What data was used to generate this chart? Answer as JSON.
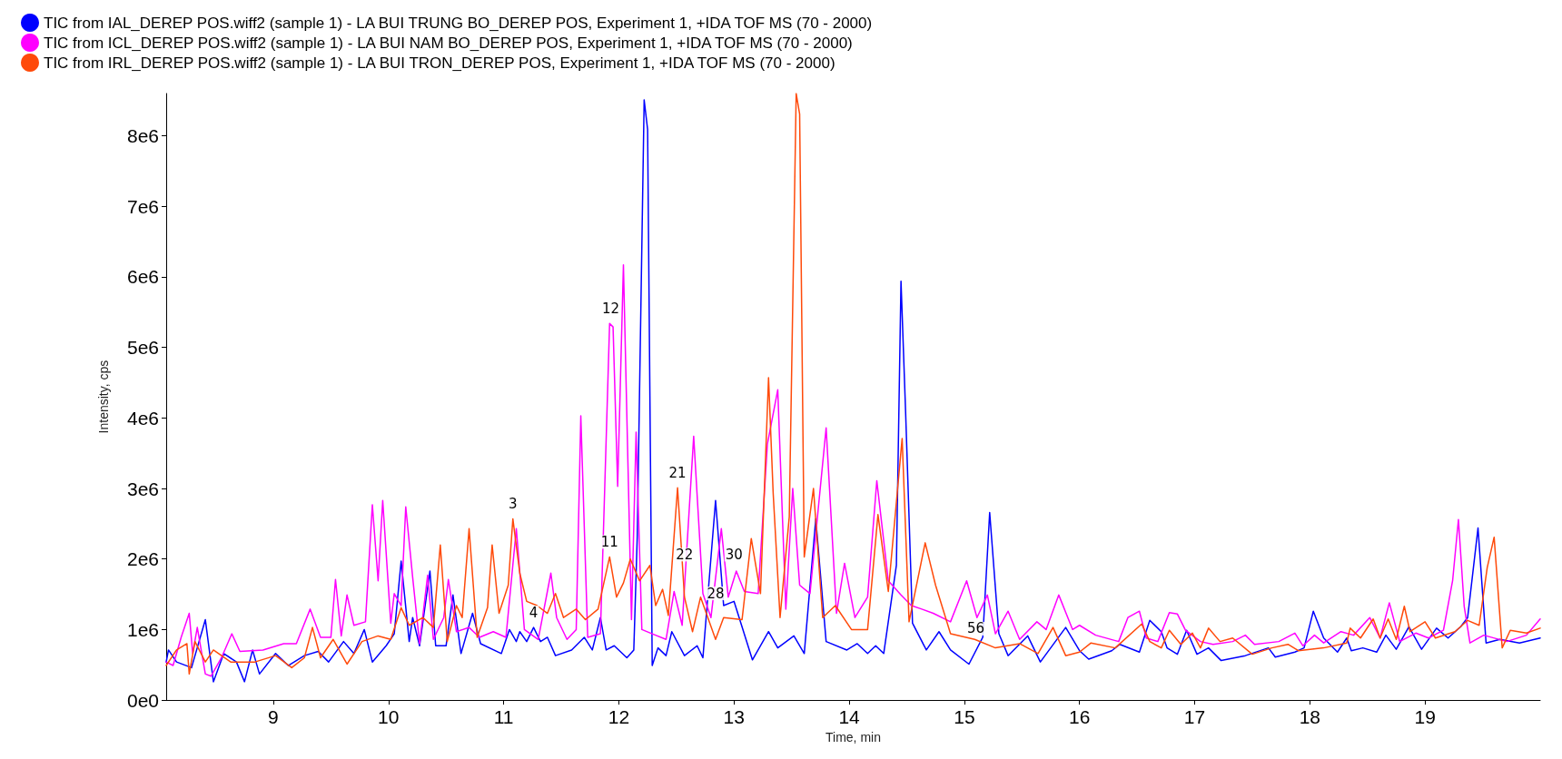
{
  "chart_data": {
    "type": "line",
    "xlabel": "Time, min",
    "ylabel": "Intensity, cps",
    "xlim": [
      8.07,
      20.0
    ],
    "xticks": [
      9,
      10,
      11,
      12,
      13,
      14,
      15,
      16,
      17,
      18,
      19
    ],
    "ylim": [
      0,
      8600000
    ],
    "yticks": [
      {
        "value": 0,
        "label": "0e0"
      },
      {
        "value": 1000000,
        "label": "1e6"
      },
      {
        "value": 2000000,
        "label": "2e6"
      },
      {
        "value": 3000000,
        "label": "3e6"
      },
      {
        "value": 4000000,
        "label": "4e6"
      },
      {
        "value": 5000000,
        "label": "5e6"
      },
      {
        "value": 6000000,
        "label": "6e6"
      },
      {
        "value": 7000000,
        "label": "7e6"
      },
      {
        "value": 8000000,
        "label": "8e6"
      }
    ],
    "grid": false,
    "legend": "top left",
    "marker": "none",
    "line_style": "solid",
    "annotations": [
      {
        "text": "3",
        "x": 11.08,
        "y": 2570000
      },
      {
        "text": "4",
        "x": 11.26,
        "y": 1030000
      },
      {
        "text": "11",
        "x": 11.92,
        "y": 2030000
      },
      {
        "text": "12",
        "x": 11.93,
        "y": 5340000
      },
      {
        "text": "21",
        "x": 12.51,
        "y": 3010000
      },
      {
        "text": "22",
        "x": 12.57,
        "y": 1850000
      },
      {
        "text": "28",
        "x": 12.84,
        "y": 1300000
      },
      {
        "text": "30",
        "x": 13.0,
        "y": 1850000
      },
      {
        "text": "56",
        "x": 15.1,
        "y": 800000
      }
    ],
    "series": [
      {
        "name": "TIC from IAL_DEREP POS.wiff2 (sample 1) - LA BUI TRUNG BO_DEREP POS, Experiment 1, +IDA TOF MS (70 - 2000)",
        "color": "#0000ff",
        "x": [
          8.07,
          8.09,
          8.16,
          8.29,
          8.41,
          8.48,
          8.57,
          8.68,
          8.75,
          8.82,
          8.88,
          9.02,
          9.13,
          9.27,
          9.39,
          9.48,
          9.61,
          9.7,
          9.79,
          9.86,
          9.98,
          10.05,
          10.11,
          10.18,
          10.21,
          10.27,
          10.36,
          10.41,
          10.5,
          10.56,
          10.63,
          10.73,
          10.8,
          10.98,
          11.05,
          11.11,
          11.14,
          11.2,
          11.26,
          11.32,
          11.38,
          11.45,
          11.59,
          11.7,
          11.77,
          11.84,
          11.89,
          11.96,
          12.07,
          12.13,
          12.16,
          12.22,
          12.25,
          12.29,
          12.34,
          12.41,
          12.46,
          12.57,
          12.68,
          12.73,
          12.84,
          12.91,
          13.0,
          13.16,
          13.3,
          13.38,
          13.52,
          13.61,
          13.71,
          13.8,
          13.98,
          14.07,
          14.16,
          14.23,
          14.3,
          14.41,
          14.45,
          14.49,
          14.55,
          14.67,
          14.78,
          14.88,
          15.04,
          15.16,
          15.22,
          15.3,
          15.38,
          15.55,
          15.66,
          15.88,
          16.0,
          16.08,
          16.28,
          16.35,
          16.52,
          16.61,
          16.71,
          16.76,
          16.85,
          16.93,
          17.02,
          17.12,
          17.23,
          17.44,
          17.64,
          17.7,
          17.87,
          17.95,
          18.03,
          18.12,
          18.24,
          18.32,
          18.36,
          18.46,
          18.58,
          18.66,
          18.75,
          18.86,
          18.97,
          19.1,
          19.2,
          19.31,
          19.37,
          19.46,
          19.53,
          19.65,
          19.82,
          20.0
        ],
        "values": [
          540000,
          710000,
          540000,
          460000,
          1140000,
          260000,
          660000,
          540000,
          260000,
          710000,
          370000,
          660000,
          490000,
          630000,
          690000,
          540000,
          830000,
          660000,
          1000000,
          540000,
          770000,
          940000,
          1970000,
          830000,
          1170000,
          770000,
          1830000,
          770000,
          770000,
          1490000,
          660000,
          1230000,
          800000,
          660000,
          1000000,
          830000,
          970000,
          830000,
          1030000,
          830000,
          890000,
          630000,
          710000,
          890000,
          710000,
          1170000,
          710000,
          770000,
          600000,
          710000,
          2310000,
          8510000,
          8090000,
          490000,
          740000,
          630000,
          970000,
          630000,
          770000,
          600000,
          2830000,
          1340000,
          1400000,
          570000,
          970000,
          740000,
          910000,
          660000,
          2570000,
          830000,
          710000,
          800000,
          660000,
          770000,
          660000,
          1910000,
          5940000,
          4090000,
          1090000,
          710000,
          970000,
          710000,
          510000,
          890000,
          2660000,
          940000,
          630000,
          910000,
          540000,
          1030000,
          700000,
          580000,
          700000,
          790000,
          680000,
          1130000,
          970000,
          740000,
          650000,
          990000,
          650000,
          740000,
          560000,
          630000,
          740000,
          610000,
          680000,
          740000,
          1260000,
          880000,
          680000,
          880000,
          700000,
          740000,
          680000,
          920000,
          720000,
          1040000,
          720000,
          1020000,
          880000,
          1040000,
          1170000,
          2440000,
          810000,
          860000,
          810000,
          880000
        ]
      },
      {
        "name": "TIC from ICL_DEREP POS.wiff2 (sample 1) - LA BUI NAM BO_DEREP POS, Experiment 1, +IDA TOF MS (70 - 2000)",
        "color": "#ff00ff",
        "x": [
          8.07,
          8.13,
          8.2,
          8.27,
          8.3,
          8.34,
          8.41,
          8.46,
          8.55,
          8.64,
          8.71,
          8.91,
          9.09,
          9.2,
          9.32,
          9.41,
          9.5,
          9.54,
          9.59,
          9.64,
          9.7,
          9.8,
          9.86,
          9.91,
          9.95,
          10.02,
          10.05,
          10.11,
          10.15,
          10.21,
          10.27,
          10.34,
          10.39,
          10.48,
          10.52,
          10.59,
          10.7,
          10.79,
          10.91,
          11.02,
          11.11,
          11.18,
          11.3,
          11.41,
          11.46,
          11.55,
          11.63,
          11.67,
          11.73,
          11.84,
          11.92,
          11.95,
          11.99,
          12.04,
          12.11,
          12.15,
          12.2,
          12.29,
          12.41,
          12.48,
          12.55,
          12.65,
          12.73,
          12.8,
          12.89,
          12.95,
          13.02,
          13.09,
          13.21,
          13.29,
          13.38,
          13.45,
          13.51,
          13.57,
          13.66,
          13.8,
          13.89,
          13.96,
          14.05,
          14.16,
          14.24,
          14.34,
          14.45,
          14.54,
          14.63,
          14.73,
          14.88,
          15.02,
          15.11,
          15.2,
          15.27,
          15.38,
          15.48,
          15.63,
          15.71,
          15.82,
          15.94,
          16.0,
          16.14,
          16.34,
          16.42,
          16.52,
          16.58,
          16.68,
          16.78,
          16.85,
          16.92,
          17.05,
          17.16,
          17.33,
          17.44,
          17.52,
          17.73,
          17.87,
          17.94,
          18.04,
          18.12,
          18.27,
          18.38,
          18.52,
          18.61,
          18.69,
          18.78,
          18.92,
          19.03,
          19.16,
          19.24,
          19.29,
          19.34,
          19.39,
          19.51,
          19.71,
          19.88,
          20.0
        ],
        "values": [
          540000,
          490000,
          890000,
          1230000,
          660000,
          1030000,
          370000,
          340000,
          600000,
          940000,
          690000,
          710000,
          800000,
          800000,
          1290000,
          890000,
          890000,
          1710000,
          910000,
          1490000,
          1060000,
          1110000,
          2770000,
          1690000,
          2830000,
          1090000,
          1510000,
          1340000,
          2740000,
          1740000,
          800000,
          1770000,
          860000,
          1170000,
          1710000,
          970000,
          1030000,
          890000,
          970000,
          890000,
          2430000,
          1000000,
          860000,
          1800000,
          1170000,
          860000,
          1000000,
          4030000,
          890000,
          940000,
          5340000,
          5290000,
          3030000,
          6170000,
          1140000,
          3800000,
          1000000,
          940000,
          860000,
          1540000,
          1060000,
          3740000,
          1510000,
          1170000,
          2430000,
          1460000,
          1830000,
          1540000,
          1510000,
          3630000,
          4400000,
          1290000,
          3000000,
          1630000,
          1510000,
          3860000,
          1230000,
          1940000,
          1170000,
          1460000,
          3110000,
          1690000,
          1490000,
          1340000,
          1290000,
          1230000,
          1110000,
          1690000,
          1170000,
          1490000,
          940000,
          1260000,
          860000,
          1110000,
          1000000,
          1490000,
          1000000,
          1060000,
          920000,
          830000,
          1170000,
          1260000,
          880000,
          830000,
          1240000,
          1220000,
          990000,
          830000,
          790000,
          830000,
          920000,
          790000,
          830000,
          950000,
          770000,
          920000,
          810000,
          970000,
          920000,
          1170000,
          880000,
          1380000,
          830000,
          950000,
          880000,
          990000,
          1700000,
          2560000,
          1330000,
          810000,
          920000,
          830000,
          920000,
          1150000
        ]
      },
      {
        "name": "TIC from IRL_DEREP POS.wiff2 (sample 1) - LA BUI TRON_DEREP POS, Experiment 1, +IDA TOF MS (70 - 2000)",
        "color": "#ff4a0a",
        "x": [
          8.07,
          8.16,
          8.25,
          8.27,
          8.32,
          8.41,
          8.48,
          8.63,
          8.84,
          9.02,
          9.16,
          9.27,
          9.34,
          9.41,
          9.52,
          9.64,
          9.77,
          9.91,
          10.02,
          10.11,
          10.18,
          10.3,
          10.39,
          10.45,
          10.51,
          10.59,
          10.64,
          10.7,
          10.77,
          10.86,
          10.9,
          10.96,
          11.04,
          11.08,
          11.14,
          11.2,
          11.29,
          11.38,
          11.45,
          11.52,
          11.63,
          11.71,
          11.82,
          11.92,
          11.98,
          12.04,
          12.1,
          12.18,
          12.27,
          12.32,
          12.38,
          12.43,
          12.51,
          12.57,
          12.64,
          12.71,
          12.84,
          12.91,
          13.07,
          13.15,
          13.23,
          13.3,
          13.34,
          13.4,
          13.48,
          13.54,
          13.57,
          13.61,
          13.69,
          13.77,
          13.88,
          14.02,
          14.16,
          14.25,
          14.34,
          14.46,
          14.52,
          14.66,
          14.75,
          14.88,
          15.09,
          15.27,
          15.48,
          15.64,
          15.77,
          15.88,
          16.0,
          16.1,
          16.31,
          16.54,
          16.61,
          16.71,
          16.78,
          16.88,
          16.98,
          17.05,
          17.12,
          17.22,
          17.33,
          17.5,
          17.67,
          17.81,
          17.9,
          18.12,
          18.32,
          18.35,
          18.44,
          18.55,
          18.61,
          18.68,
          18.75,
          18.82,
          18.87,
          19.0,
          19.09,
          19.26,
          19.37,
          19.47,
          19.54,
          19.6,
          19.67,
          19.74,
          19.88,
          20.0
        ],
        "values": [
          490000,
          710000,
          800000,
          370000,
          830000,
          540000,
          710000,
          540000,
          540000,
          630000,
          460000,
          600000,
          1030000,
          600000,
          860000,
          510000,
          830000,
          910000,
          860000,
          1310000,
          1060000,
          1170000,
          1030000,
          2200000,
          830000,
          1340000,
          1170000,
          2430000,
          890000,
          1310000,
          2200000,
          1230000,
          1630000,
          2570000,
          1800000,
          1400000,
          1340000,
          1230000,
          1510000,
          1170000,
          1290000,
          1140000,
          1290000,
          2030000,
          1460000,
          1660000,
          2000000,
          1690000,
          1910000,
          1340000,
          1570000,
          1200000,
          3010000,
          1460000,
          970000,
          1460000,
          860000,
          1170000,
          1140000,
          2290000,
          1510000,
          4570000,
          2940000,
          1170000,
          2600000,
          8600000,
          8310000,
          2030000,
          3000000,
          1170000,
          1340000,
          1000000,
          1000000,
          2630000,
          1540000,
          3710000,
          1110000,
          2230000,
          1630000,
          940000,
          860000,
          740000,
          800000,
          660000,
          1030000,
          630000,
          680000,
          810000,
          740000,
          1080000,
          830000,
          740000,
          990000,
          790000,
          950000,
          740000,
          1020000,
          830000,
          880000,
          650000,
          740000,
          790000,
          700000,
          740000,
          810000,
          1020000,
          880000,
          1150000,
          880000,
          1150000,
          860000,
          1330000,
          970000,
          1110000,
          880000,
          970000,
          1130000,
          1060000,
          1880000,
          2310000,
          740000,
          990000,
          950000,
          1020000
        ]
      }
    ]
  }
}
